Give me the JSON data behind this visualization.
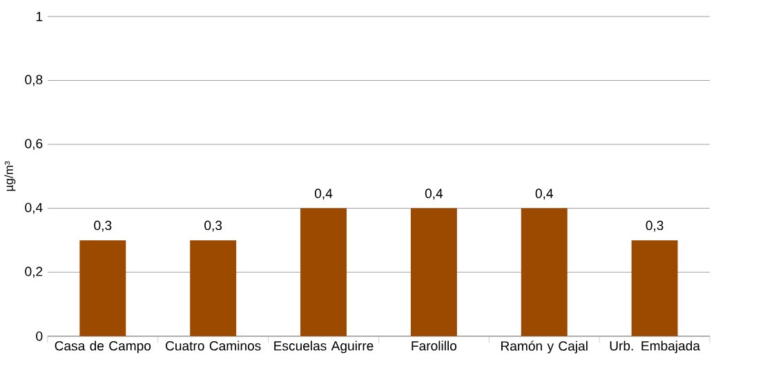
{
  "chart_data": {
    "type": "bar",
    "ylabel": "µg/m³",
    "categories": [
      "Casa de Campo",
      "Cuatro Caminos",
      "Escuelas Aguirre",
      "Farolillo",
      "Ramón y Cajal",
      "Urb. Embajada"
    ],
    "values": [
      0.3,
      0.3,
      0.4,
      0.4,
      0.4,
      0.3
    ],
    "value_labels": [
      "0,3",
      "0,3",
      "0,4",
      "0,4",
      "0,4",
      "0,3"
    ],
    "color": "#9c4a00",
    "ylim": [
      0,
      1
    ],
    "yticks": [
      0,
      {
        "value": 0.2,
        "label": "0,2"
      },
      {
        "value": 0.4,
        "label": "0,4"
      },
      {
        "value": 0.6,
        "label": "0,6"
      },
      {
        "value": 0.8,
        "label": "0,8"
      },
      1
    ],
    "grid": "y"
  }
}
